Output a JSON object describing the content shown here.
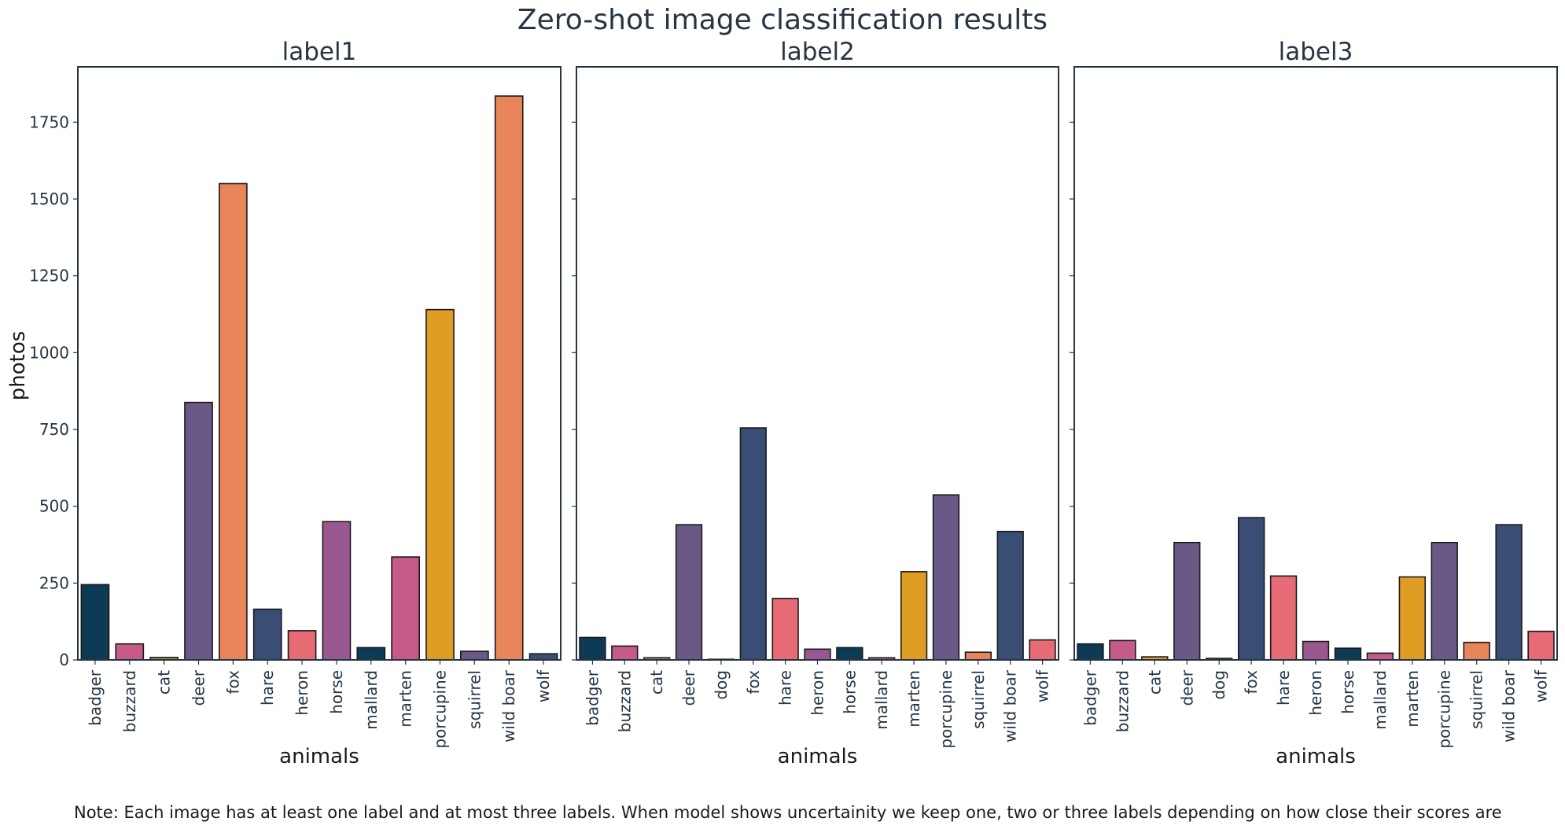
{
  "chart_data": {
    "type": "bar",
    "title": "Zero-shot image classification results",
    "ylabel": "photos",
    "note": "Note: Each image has at least one label and at most three labels. When model shows uncertainity we keep one, two or three labels depending on how close their scores are",
    "ylim": [
      0,
      1930
    ],
    "yticks": [
      0,
      250,
      500,
      750,
      1000,
      1250,
      1500,
      1750
    ],
    "sharey": true,
    "palette": {
      "badger": "#0d3b55",
      "buzzard": "#c65b8a",
      "cat": "#9aa03e",
      "deer": "#6a5887",
      "dog": "#8a8a8a",
      "fox": "#e8855a",
      "hare": "#3a4d75",
      "heron": "#e66b75",
      "horse": "#9a5891",
      "mallard": "#0d3b55",
      "marten": "#c65b8a",
      "porcupine": "#e09d23",
      "squirrel": "#6a5887",
      "wild boar": "#e8855a",
      "wolf": "#3a4d75"
    },
    "panels": [
      {
        "title": "label1",
        "xlabel": "animals",
        "categories": [
          "badger",
          "buzzard",
          "cat",
          "deer",
          "fox",
          "hare",
          "heron",
          "horse",
          "mallard",
          "marten",
          "porcupine",
          "squirrel",
          "wild boar",
          "wolf"
        ],
        "values": [
          245,
          52,
          8,
          838,
          1550,
          165,
          95,
          450,
          40,
          335,
          1140,
          28,
          1835,
          20
        ],
        "colors": [
          "#0d3b55",
          "#c65b8a",
          "#9aa03e",
          "#6a5887",
          "#e8855a",
          "#3a4d75",
          "#e66b75",
          "#9a5891",
          "#0d3b55",
          "#c65b8a",
          "#e09d23",
          "#6a5887",
          "#e8855a",
          "#3a4d75"
        ]
      },
      {
        "title": "label2",
        "xlabel": "animals",
        "categories": [
          "badger",
          "buzzard",
          "cat",
          "deer",
          "dog",
          "fox",
          "hare",
          "heron",
          "horse",
          "mallard",
          "marten",
          "porcupine",
          "squirrel",
          "wild boar",
          "wolf"
        ],
        "values": [
          73,
          45,
          7,
          440,
          2,
          755,
          200,
          35,
          40,
          7,
          287,
          537,
          25,
          418,
          65
        ],
        "colors": [
          "#0d3b55",
          "#c65b8a",
          "#9aa03e",
          "#6a5887",
          "#8a8a8a",
          "#3a4d75",
          "#e66b75",
          "#9a5891",
          "#0d3b55",
          "#c65b8a",
          "#e09d23",
          "#6a5887",
          "#e8855a",
          "#3a4d75",
          "#e66b75"
        ]
      },
      {
        "title": "label3",
        "xlabel": "animals",
        "categories": [
          "badger",
          "buzzard",
          "cat",
          "deer",
          "dog",
          "fox",
          "hare",
          "heron",
          "horse",
          "mallard",
          "marten",
          "porcupine",
          "squirrel",
          "wild boar",
          "wolf"
        ],
        "values": [
          52,
          63,
          10,
          382,
          5,
          463,
          273,
          60,
          38,
          22,
          270,
          382,
          57,
          440,
          93
        ],
        "colors": [
          "#0d3b55",
          "#c65b8a",
          "#e09d23",
          "#6a5887",
          "#8a8a8a",
          "#3a4d75",
          "#e66b75",
          "#9a5891",
          "#0d3b55",
          "#c65b8a",
          "#e09d23",
          "#6a5887",
          "#e8855a",
          "#3a4d75",
          "#e66b75"
        ]
      }
    ]
  }
}
